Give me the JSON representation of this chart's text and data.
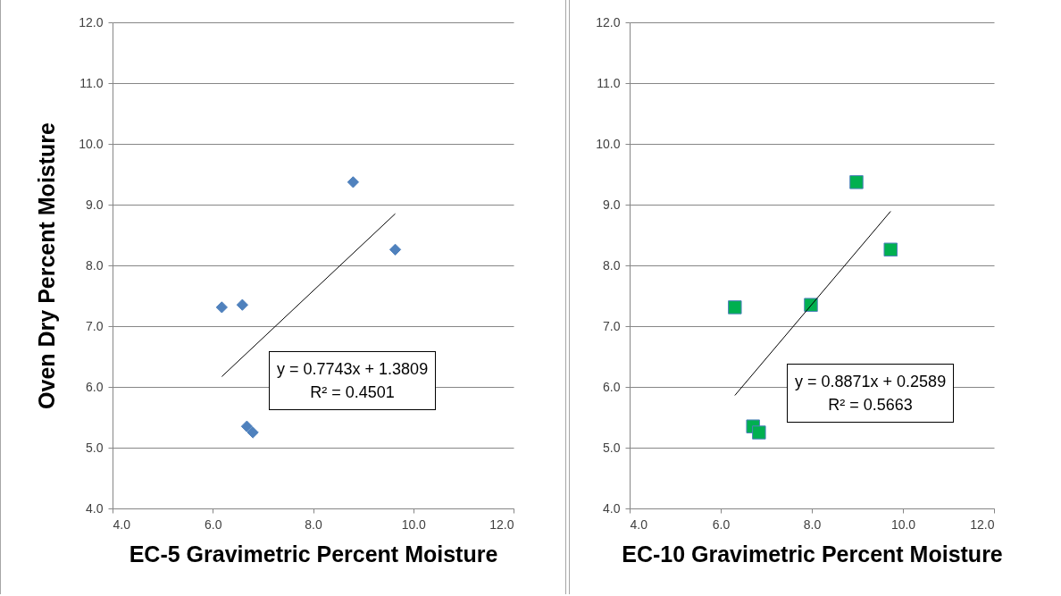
{
  "chart_data": [
    {
      "type": "scatter",
      "xlabel": "EC-5 Gravimetric Percent Moisture",
      "ylabel": "Oven Dry Percent Moisture",
      "grid": "y",
      "xlim": [
        4,
        12
      ],
      "xticks": [
        {
          "value": 4,
          "label": "4.0"
        },
        {
          "value": 6,
          "label": "6.0"
        },
        {
          "value": 8,
          "label": "8.0"
        },
        {
          "value": 10,
          "label": "10.0"
        },
        {
          "value": 12,
          "label": "12.0"
        }
      ],
      "ylim": [
        4,
        12
      ],
      "yticks": [
        {
          "value": 4,
          "label": "4.0"
        },
        {
          "value": 5,
          "label": "5.0"
        },
        {
          "value": 6,
          "label": "6.0"
        },
        {
          "value": 7,
          "label": "7.0"
        },
        {
          "value": 8,
          "label": "8.0"
        },
        {
          "value": 9,
          "label": "9.0"
        },
        {
          "value": 10,
          "label": "10.0"
        },
        {
          "value": 11,
          "label": "11.0"
        },
        {
          "value": 12,
          "label": "12.0"
        }
      ],
      "series": [
        {
          "marker": "diamond",
          "color": "#4f81bd",
          "x": [
            6.18,
            6.59,
            6.68,
            6.8,
            8.8,
            9.64
          ],
          "values": [
            7.31,
            7.35,
            5.35,
            5.25,
            9.37,
            8.26
          ]
        },
        {
          "type": "line",
          "color": "#000000",
          "x": [
            6.18,
            9.64
          ],
          "values": [
            6.17,
            8.85
          ]
        }
      ],
      "annotations": [
        "y = 0.7743x + 1.3809",
        "R² = 0.4501"
      ]
    },
    {
      "type": "scatter",
      "xlabel": "EC-10 Gravimetric Percent Moisture",
      "grid": "y",
      "xlim": [
        4,
        12
      ],
      "xticks": [
        {
          "value": 4,
          "label": "4.0"
        },
        {
          "value": 6,
          "label": "6.0"
        },
        {
          "value": 8,
          "label": "8.0"
        },
        {
          "value": 10,
          "label": "10.0"
        },
        {
          "value": 12,
          "label": "12.0"
        }
      ],
      "ylim": [
        4,
        12
      ],
      "yticks": [
        {
          "value": 4,
          "label": "4.0"
        },
        {
          "value": 5,
          "label": "5.0"
        },
        {
          "value": 6,
          "label": "6.0"
        },
        {
          "value": 7,
          "label": "7.0"
        },
        {
          "value": 8,
          "label": "8.0"
        },
        {
          "value": 9,
          "label": "9.0"
        },
        {
          "value": 10,
          "label": "10.0"
        },
        {
          "value": 11,
          "label": "11.0"
        },
        {
          "value": 12,
          "label": "12.0"
        }
      ],
      "series": [
        {
          "marker": "square",
          "color": "#00b050",
          "x": [
            6.31,
            6.71,
            6.84,
            7.98,
            8.98,
            9.73
          ],
          "values": [
            7.31,
            5.35,
            5.25,
            7.35,
            9.37,
            8.26
          ]
        },
        {
          "type": "line",
          "color": "#000000",
          "x": [
            6.31,
            9.73
          ],
          "values": [
            5.86,
            8.89
          ]
        }
      ],
      "annotations": [
        "y = 0.8871x + 0.2589",
        "R² = 0.5663"
      ]
    }
  ]
}
